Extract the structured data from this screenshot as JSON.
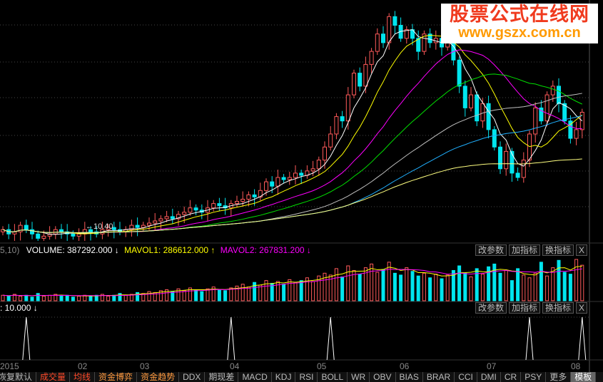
{
  "volume_header": {
    "prefix": "5,10)",
    "volume": "VOLUME: 387292.000",
    "volume_arrow": "↓",
    "mavol1": "MAVOL1: 286612.000",
    "mavol1_arrow": "↑",
    "mavol2": "MAVOL2: 267831.200",
    "mavol2_arrow": "↓"
  },
  "indicator_header": {
    "value": ": 10.000",
    "arrow": "↓"
  },
  "panel_buttons": {
    "modify": "改参数",
    "add": "加指标",
    "swap": "换指标",
    "close": "X"
  },
  "low_price_label": "←10.40",
  "watermark": {
    "title": "股票公式在线网",
    "url": "www.gszx.com.cn"
  },
  "date_axis": [
    "2015",
    "02",
    "03",
    "04",
    "05",
    "06",
    "07",
    "08"
  ],
  "tabs": [
    "恢复默认",
    "成交量",
    "均线",
    "资金博弈",
    "资金趋势",
    "DDX",
    "期现差",
    "MACD",
    "KDJ",
    "RSI",
    "BOLL",
    "WR",
    "OBV",
    "BIAS",
    "BRAR",
    "CCI",
    "DMI",
    "CR",
    "PSY",
    "更多",
    "模板"
  ],
  "colors": {
    "up": "#ff5a5a",
    "down": "#00e5ee",
    "ma5": "#ffffff",
    "ma10": "#ffff00",
    "ma20": "#ff00ff",
    "ma30": "#00e000",
    "ma60": "#20b0ff",
    "ma120": "#ffff80",
    "ma90": "#c0c0c0"
  },
  "closes": [
    10.7,
    10.6,
    10.65,
    10.8,
    10.7,
    10.6,
    10.5,
    10.55,
    10.6,
    10.7,
    10.65,
    10.6,
    10.55,
    10.6,
    10.7,
    10.65,
    10.6,
    10.7,
    10.75,
    10.7,
    10.65,
    10.7,
    10.8,
    10.75,
    10.8,
    10.85,
    10.9,
    10.95,
    11.0,
    10.95,
    11.05,
    11.1,
    11.2,
    11.15,
    11.1,
    11.2,
    11.3,
    11.25,
    11.2,
    11.3,
    11.35,
    11.4,
    11.5,
    11.45,
    11.6,
    11.8,
    11.7,
    11.9,
    11.85,
    11.9,
    12.0,
    11.95,
    12.05,
    12.1,
    12.3,
    12.6,
    12.9,
    13.3,
    13.2,
    13.8,
    14.3,
    14.0,
    14.5,
    14.8,
    15.2,
    15.0,
    15.6,
    15.4,
    15.1,
    15.3,
    15.1,
    14.8,
    15.2,
    15.0,
    15.1,
    14.9,
    15.0,
    14.6,
    14.0,
    13.5,
    13.8,
    13.2,
    13.6,
    13.0,
    12.6,
    12.1,
    12.5,
    12.0,
    11.9,
    12.3,
    12.9,
    13.5,
    13.2,
    13.8,
    14.0,
    13.6,
    13.2,
    12.8,
    13.0,
    13.4
  ],
  "volumes_10k": [
    6,
    5,
    7,
    5,
    6,
    4,
    8,
    5,
    6,
    7,
    5,
    6,
    4,
    5,
    6,
    5,
    6,
    7,
    5,
    6,
    8,
    6,
    7,
    9,
    8,
    10,
    9,
    11,
    12,
    10,
    13,
    11,
    14,
    12,
    10,
    13,
    15,
    12,
    11,
    14,
    16,
    18,
    15,
    20,
    17,
    22,
    19,
    21,
    18,
    23,
    20,
    22,
    25,
    21,
    27,
    30,
    28,
    35,
    26,
    38,
    33,
    29,
    36,
    40,
    31,
    34,
    42,
    30,
    28,
    36,
    32,
    27,
    30,
    25,
    29,
    24,
    28,
    33,
    38,
    30,
    26,
    35,
    29,
    37,
    40,
    30,
    33,
    22,
    35,
    28,
    25,
    30,
    42,
    27,
    36,
    44,
    31,
    29,
    45,
    38.7
  ],
  "indicator_signals": [
    4,
    39,
    56,
    90,
    99
  ]
}
